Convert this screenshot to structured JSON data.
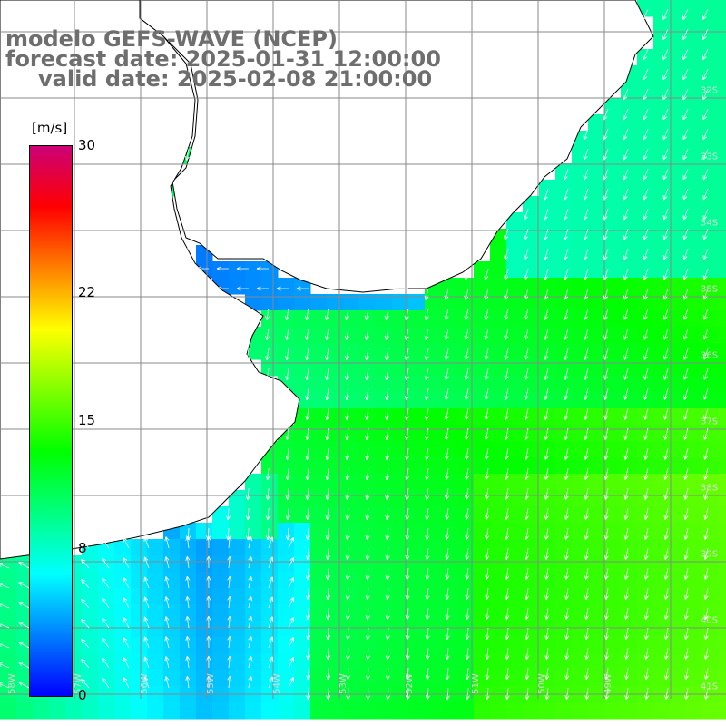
{
  "title": {
    "model": "modelo GEFS-WAVE (NCEP)",
    "forecast": "forecast date: 2025-01-31 12:00:00",
    "valid": "valid date: 2025-02-08 21:00:00"
  },
  "colorbar": {
    "unit": "[m/s]",
    "min": 0,
    "max": 30,
    "tick_labels": [
      "30",
      "22",
      "15",
      "8",
      "0"
    ],
    "tick_values": [
      30,
      22,
      15,
      8,
      0
    ],
    "colors": [
      "#0000ff",
      "#0080ff",
      "#00ffff",
      "#00ff80",
      "#00ff00",
      "#80ff00",
      "#ffff00",
      "#ff8000",
      "#ff0000",
      "#cc0077"
    ]
  },
  "map": {
    "land_color": "#ffffff",
    "grid_color": "#888888",
    "coast_color": "#000000",
    "arrow_color": "#ffffff",
    "lat_labels": [
      "32S",
      "33S",
      "34S",
      "35S",
      "36S",
      "37S",
      "38S",
      "39S",
      "40S",
      "41S"
    ],
    "lon_labels": [
      "58W",
      "57W",
      "56W",
      "55W",
      "54W",
      "53W",
      "52W",
      "51W",
      "50W",
      "49W"
    ]
  }
}
